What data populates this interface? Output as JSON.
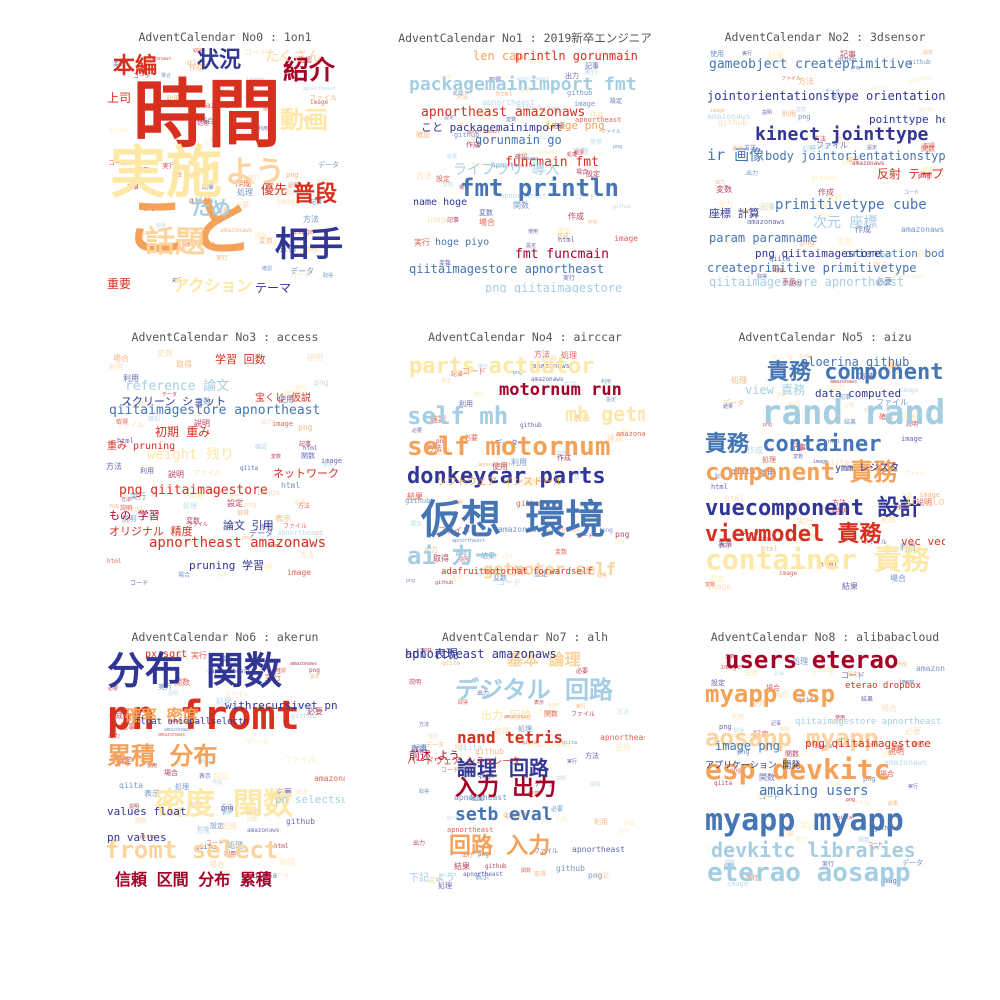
{
  "palette": {
    "red": "#d7301f",
    "orange": "#f4a259",
    "lightorange": "#fdd49e",
    "yellow": "#fee8a6",
    "lightblue": "#a6cee3",
    "blue": "#4575b4",
    "navy": "#313695",
    "darkred": "#a50026"
  },
  "panels": [
    {
      "title": "AdventCalendar No0 : 1on1",
      "words": [
        {
          "text": "時間",
          "color": "red"
        },
        {
          "text": "実施",
          "color": "yellow"
        },
        {
          "text": "こと",
          "color": "orange"
        },
        {
          "text": "話題",
          "color": "lightorange"
        },
        {
          "text": "よう",
          "color": "lightorange"
        },
        {
          "text": "相手",
          "color": "navy"
        },
        {
          "text": "本編",
          "color": "red"
        },
        {
          "text": "状況",
          "color": "navy"
        },
        {
          "text": "紹介",
          "color": "darkred"
        },
        {
          "text": "普段",
          "color": "red"
        },
        {
          "text": "ため",
          "color": "lightblue"
        },
        {
          "text": "動画",
          "color": "yellow"
        },
        {
          "text": "重要",
          "color": "red"
        },
        {
          "text": "アクション",
          "color": "yellow"
        },
        {
          "text": "テーマ",
          "color": "navy"
        },
        {
          "text": "優先",
          "color": "red"
        },
        {
          "text": "上司",
          "color": "red"
        },
        {
          "text": "たくさん",
          "color": "lightorange"
        }
      ]
    },
    {
      "title": "AdventCalendar No1 : 2019新卒エンジニア",
      "words": [
        {
          "text": "fmt println",
          "color": "blue"
        },
        {
          "text": "packagemainimport fmt",
          "color": "lightblue"
        },
        {
          "text": "apnortheast amazonaws",
          "color": "red"
        },
        {
          "text": "gorunmain go",
          "color": "blue"
        },
        {
          "text": "fmt funcmain",
          "color": "darkred"
        },
        {
          "text": "qiitaimagestore apnortheast",
          "color": "blue"
        },
        {
          "text": "println gorunmain",
          "color": "red"
        },
        {
          "text": "len cap",
          "color": "orange"
        },
        {
          "text": "funcmain fmt",
          "color": "red"
        },
        {
          "text": "ライブラリ 導入",
          "color": "lightblue"
        },
        {
          "text": "image png",
          "color": "orange"
        },
        {
          "text": "こと packagemainimport",
          "color": "navy"
        },
        {
          "text": "png qiitaimagestore",
          "color": "lightblue"
        },
        {
          "text": "name hoge",
          "color": "navy"
        },
        {
          "text": "hoge piyo",
          "color": "blue"
        }
      ]
    },
    {
      "title": "AdventCalendar No2 : 3dsensor",
      "words": [
        {
          "text": "gameobject createprimitive",
          "color": "blue"
        },
        {
          "text": "kinect jointtype",
          "color": "navy"
        },
        {
          "text": "jointorientationstype orientation",
          "color": "navy"
        },
        {
          "text": "primitivetype cube",
          "color": "blue"
        },
        {
          "text": "createprimitive primitivetype",
          "color": "blue"
        },
        {
          "text": "ir 画像",
          "color": "blue"
        },
        {
          "text": "body jointorientationstype",
          "color": "blue"
        },
        {
          "text": "反射 テープ",
          "color": "red"
        },
        {
          "text": "次元 座標",
          "color": "lightblue"
        },
        {
          "text": "param paramname",
          "color": "blue"
        },
        {
          "text": "pointtype head",
          "color": "navy"
        },
        {
          "text": "座標 計算",
          "color": "navy"
        },
        {
          "text": "orientation body",
          "color": "blue"
        },
        {
          "text": "png qiitaimagestore",
          "color": "navy"
        },
        {
          "text": "qiitaimagestore apnortheast",
          "color": "lightblue"
        }
      ]
    },
    {
      "title": "AdventCalendar No3 : access",
      "words": [
        {
          "text": "qiitaimagestore apnortheast",
          "color": "blue"
        },
        {
          "text": "apnortheast amazonaws",
          "color": "red"
        },
        {
          "text": "png qiitaimagestore",
          "color": "red"
        },
        {
          "text": "reference 論文",
          "color": "lightblue"
        },
        {
          "text": "スクリーン ショット",
          "color": "navy"
        },
        {
          "text": "初期 重み",
          "color": "red"
        },
        {
          "text": "weight 残り",
          "color": "yellow"
        },
        {
          "text": "学習 回数",
          "color": "red"
        },
        {
          "text": "もの 学習",
          "color": "darkred"
        },
        {
          "text": "オリジナル 精度",
          "color": "red"
        },
        {
          "text": "論文 引用",
          "color": "navy"
        },
        {
          "text": "pruning 学習",
          "color": "navy"
        },
        {
          "text": "ネットワーク",
          "color": "red"
        },
        {
          "text": "宝くじ 仮説",
          "color": "red"
        },
        {
          "text": "重み pruning",
          "color": "red"
        }
      ]
    },
    {
      "title": "AdventCalendar No4 : airccar",
      "words": [
        {
          "text": "仮想 環境",
          "color": "blue"
        },
        {
          "text": "self motornum",
          "color": "orange"
        },
        {
          "text": "donkeycar parts",
          "color": "navy"
        },
        {
          "text": "self mh",
          "color": "lightblue"
        },
        {
          "text": "parts actuator",
          "color": "yellow"
        },
        {
          "text": "motornum run",
          "color": "darkred"
        },
        {
          "text": "mh getmotor",
          "color": "yellow"
        },
        {
          "text": "ai カー",
          "color": "lightblue"
        },
        {
          "text": "getmotor self",
          "color": "lightorange"
        },
        {
          "text": "ソフトウェア インストール",
          "color": "orange"
        },
        {
          "text": "adafruitmotorhat forwardself",
          "color": "red"
        }
      ]
    },
    {
      "title": "AdventCalendar No5 : aizu",
      "words": [
        {
          "text": "責務 component",
          "color": "blue"
        },
        {
          "text": "rand rand",
          "color": "lightblue"
        },
        {
          "text": "責務 container",
          "color": "blue"
        },
        {
          "text": "component 責務",
          "color": "orange"
        },
        {
          "text": "vuecomponent 設計",
          "color": "navy"
        },
        {
          "text": "viewmodel 責務",
          "color": "red"
        },
        {
          "text": "container 責務",
          "color": "yellow"
        },
        {
          "text": "aloerina github",
          "color": "blue"
        },
        {
          "text": "view 責務",
          "color": "lightblue"
        },
        {
          "text": "data computed",
          "color": "navy"
        },
        {
          "text": "vec vec",
          "color": "red"
        },
        {
          "text": "io blob",
          "color": "lightorange"
        },
        {
          "text": "ymm レジスタ",
          "color": "navy"
        }
      ]
    },
    {
      "title": "AdventCalendar No6 : akerun",
      "words": [
        {
          "text": "分布 関数",
          "color": "navy"
        },
        {
          "text": "pn fromt",
          "color": "red"
        },
        {
          "text": "累積 分布",
          "color": "orange"
        },
        {
          "text": "密度 関数",
          "color": "yellow"
        },
        {
          "text": "fromt select",
          "color": "lightorange"
        },
        {
          "text": "信頼 区間 分布 累積",
          "color": "darkred"
        },
        {
          "text": "確率 密度",
          "color": "orange"
        },
        {
          "text": "withrecursivet pn",
          "color": "navy"
        },
        {
          "text": "values float",
          "color": "navy"
        },
        {
          "text": "pn values",
          "color": "navy"
        },
        {
          "text": "pn selectsum",
          "color": "lightblue"
        },
        {
          "text": "px sqrt",
          "color": "red"
        },
        {
          "text": "float unionallselectn",
          "color": "navy"
        }
      ]
    },
    {
      "title": "AdventCalendar No7 : alh",
      "words": [
        {
          "text": "デジタル 回路",
          "color": "lightblue"
        },
        {
          "text": "入力 出力",
          "color": "darkred"
        },
        {
          "text": "論理 回路",
          "color": "navy"
        },
        {
          "text": "nand tetris",
          "color": "red"
        },
        {
          "text": "基本 論理",
          "color": "lightorange"
        },
        {
          "text": "setb eval",
          "color": "blue"
        },
        {
          "text": "回路 入力",
          "color": "orange"
        },
        {
          "text": "出力 回路",
          "color": "yellow"
        },
        {
          "text": "前述 よう",
          "color": "darkred"
        },
        {
          "text": "下記 よう",
          "color": "lightblue"
        },
        {
          "text": "ハードウェア シミュレータ",
          "color": "red"
        },
        {
          "text": "apnortheast amazonaws",
          "color": "navy"
        },
        {
          "text": "hdl 表現",
          "color": "navy"
        }
      ]
    },
    {
      "title": "AdventCalendar No8 : alibabacloud",
      "words": [
        {
          "text": "users eterao",
          "color": "darkred"
        },
        {
          "text": "myapp myapp",
          "color": "blue"
        },
        {
          "text": "esp devkitc",
          "color": "orange"
        },
        {
          "text": "aosapp myapp",
          "color": "lightorange"
        },
        {
          "text": "myapp esp",
          "color": "orange"
        },
        {
          "text": "devkitc libraries",
          "color": "lightblue"
        },
        {
          "text": "eterao aosapp",
          "color": "lightblue"
        },
        {
          "text": "amaking users",
          "color": "blue"
        },
        {
          "text": "image png",
          "color": "blue"
        },
        {
          "text": "png qiitaimagestore",
          "color": "red"
        },
        {
          "text": "アプリケーション 開発",
          "color": "navy"
        },
        {
          "text": "eterao dropbox",
          "color": "red"
        },
        {
          "text": "qiitaimagestore apnortheast",
          "color": "lightblue"
        }
      ]
    }
  ]
}
